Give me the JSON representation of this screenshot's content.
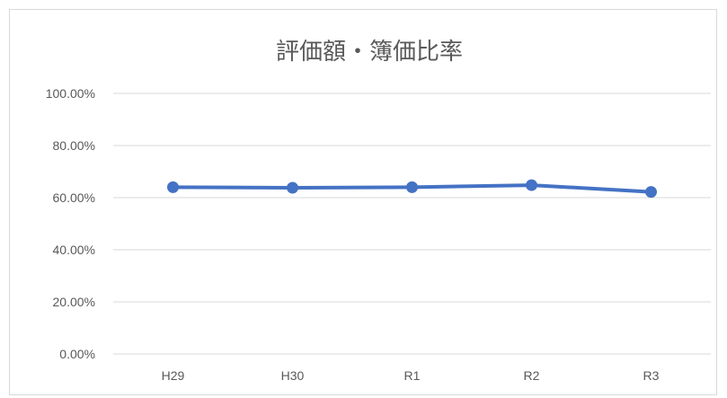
{
  "chart_data": {
    "type": "line",
    "title": "評価額・簿価比率",
    "xlabel": "",
    "ylabel": "",
    "categories": [
      "H29",
      "H30",
      "R1",
      "R2",
      "R3"
    ],
    "series": [
      {
        "values": [
          0.64,
          0.638,
          0.64,
          0.648,
          0.622
        ]
      }
    ],
    "ylim": [
      0,
      1
    ],
    "y_ticks": [
      "0.00%",
      "20.00%",
      "40.00%",
      "60.00%",
      "80.00%",
      "100.00%"
    ],
    "y_tick_values": [
      0,
      0.2,
      0.4,
      0.6,
      0.8,
      1.0
    ],
    "grid": true,
    "legend": "none",
    "colors": {
      "series": "#4472c4",
      "grid": "#d9d9d9",
      "text": "#595959"
    }
  }
}
